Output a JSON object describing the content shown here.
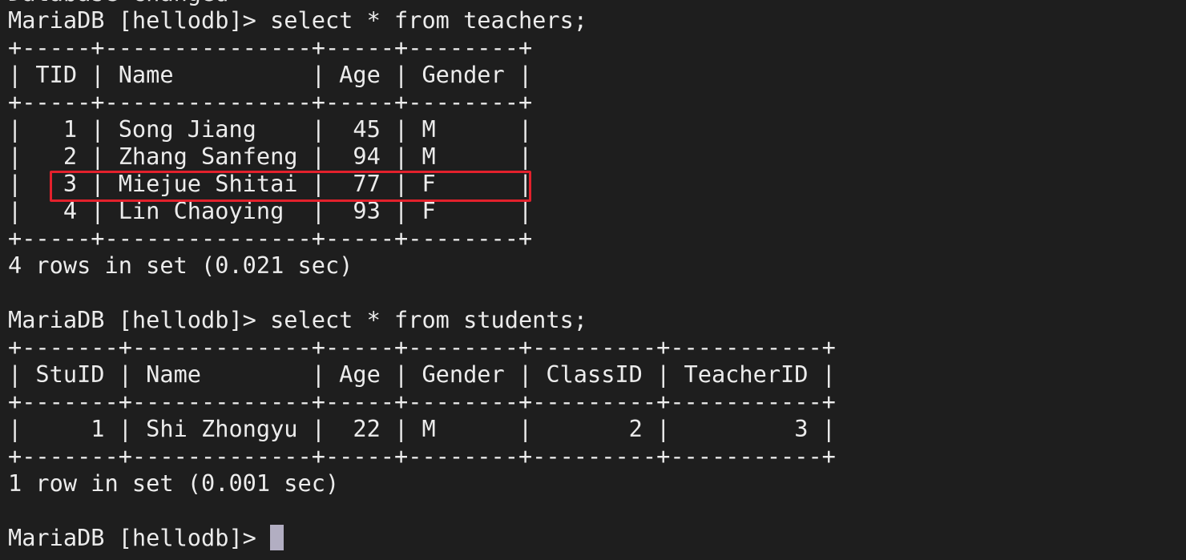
{
  "terminal": {
    "lines": [
      "Database changed",
      "MariaDB [hellodb]> select * from teachers;",
      "+-----+---------------+-----+--------+",
      "| TID | Name          | Age | Gender |",
      "+-----+---------------+-----+--------+",
      "|   1 | Song Jiang    |  45 | M      |",
      "|   2 | Zhang Sanfeng |  94 | M      |",
      "|   3 | Miejue Shitai |  77 | F      |",
      "|   4 | Lin Chaoying  |  93 | F      |",
      "+-----+---------------+-----+--------+",
      "4 rows in set (0.021 sec)",
      "",
      "MariaDB [hellodb]> select * from students;",
      "+-------+-------------+-----+--------+---------+-----------+",
      "| StuID | Name        | Age | Gender | ClassID | TeacherID |",
      "+-------+-------------+-----+--------+---------+-----------+",
      "|     1 | Shi Zhongyu |  22 | M      |       2 |         3 |",
      "+-------+-------------+-----+--------+---------+-----------+",
      "1 row in set (0.001 sec)",
      ""
    ],
    "prompt": "MariaDB [hellodb]> ",
    "highlight_color": "#e3212c",
    "background_color": "#1e1e1e"
  }
}
